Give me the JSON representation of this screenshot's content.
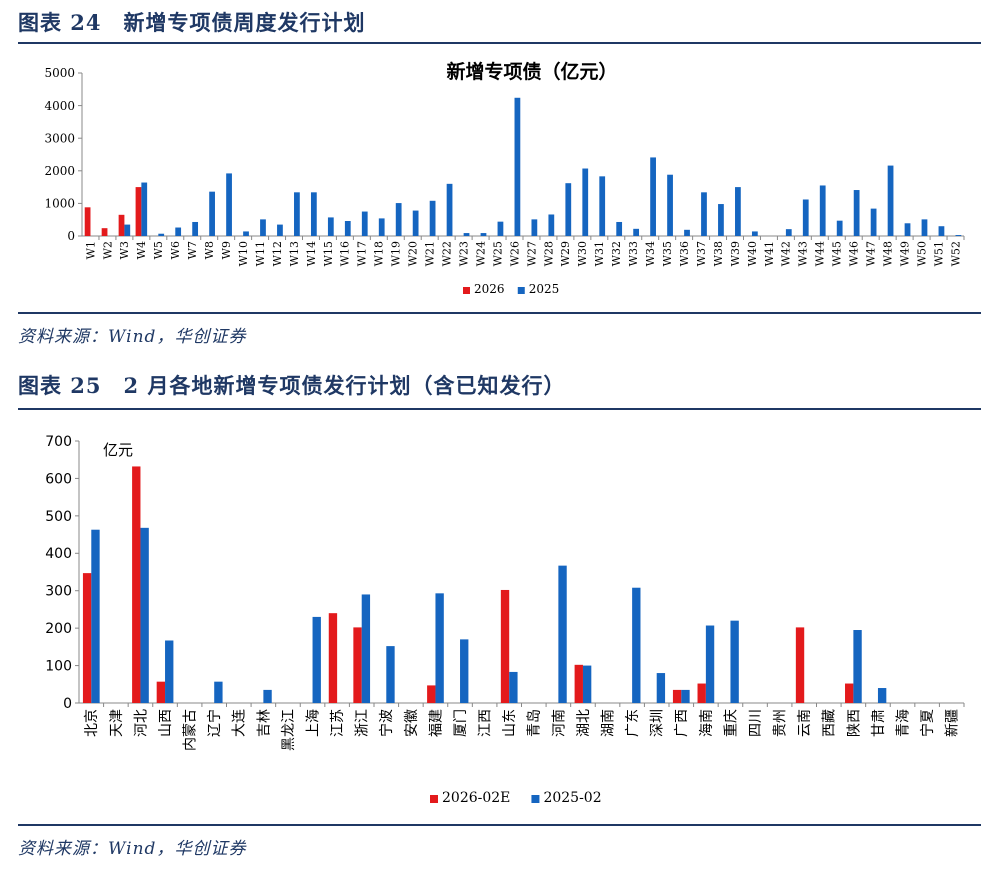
{
  "figure1": {
    "label": "图表 24　新增专项债周度发行计划",
    "source": "资料来源：Wind，华创证券"
  },
  "figure2": {
    "label": "图表 25　2 月各地新增专项债发行计划（含已知发行）",
    "source": "资料来源：Wind，华创证券"
  },
  "colors": {
    "red": "#e31a1c",
    "blue": "#1565c0",
    "navy": "#1f3864"
  },
  "chart_data": [
    {
      "type": "bar",
      "title": "新增专项债（亿元）",
      "xlabel": "",
      "ylabel": "",
      "ylim": [
        0,
        5000
      ],
      "yticks": [
        0,
        1000,
        2000,
        3000,
        4000,
        5000
      ],
      "grid": false,
      "legend_position": "bottom",
      "categories": [
        "W1",
        "W2",
        "W3",
        "W4",
        "W5",
        "W6",
        "W7",
        "W8",
        "W9",
        "W10",
        "W11",
        "W12",
        "W13",
        "W14",
        "W15",
        "W16",
        "W17",
        "W18",
        "W19",
        "W20",
        "W21",
        "W22",
        "W23",
        "W24",
        "W25",
        "W26",
        "W27",
        "W28",
        "W29",
        "W30",
        "W31",
        "W32",
        "W33",
        "W34",
        "W35",
        "W36",
        "W37",
        "W38",
        "W39",
        "W40",
        "W41",
        "W42",
        "W43",
        "W44",
        "W45",
        "W46",
        "W47",
        "W48",
        "W49",
        "W50",
        "W51",
        "W52"
      ],
      "series": [
        {
          "name": "2026",
          "color": "#e31a1c",
          "values": [
            880,
            240,
            650,
            1500,
            null,
            null,
            null,
            null,
            null,
            null,
            null,
            null,
            null,
            null,
            null,
            null,
            null,
            null,
            null,
            null,
            null,
            null,
            null,
            null,
            null,
            null,
            null,
            null,
            null,
            null,
            null,
            null,
            null,
            null,
            null,
            null,
            null,
            null,
            null,
            null,
            null,
            null,
            null,
            null,
            null,
            null,
            null,
            null,
            null,
            null,
            null,
            null
          ]
        },
        {
          "name": "2025",
          "color": "#1565c0",
          "values": [
            0,
            0,
            350,
            1640,
            70,
            260,
            430,
            1360,
            1920,
            140,
            510,
            350,
            1340,
            1340,
            570,
            460,
            750,
            540,
            1010,
            780,
            1080,
            1600,
            90,
            90,
            440,
            4240,
            510,
            660,
            1620,
            2070,
            1830,
            430,
            220,
            2410,
            1880,
            190,
            1340,
            980,
            1500,
            140,
            0,
            210,
            1120,
            1550,
            470,
            1410,
            840,
            2160,
            390,
            510,
            300,
            30
          ]
        }
      ]
    },
    {
      "type": "bar",
      "title": "",
      "unit_label": "亿元",
      "xlabel": "",
      "ylabel": "",
      "ylim": [
        0,
        700
      ],
      "yticks": [
        0,
        100,
        200,
        300,
        400,
        500,
        600,
        700
      ],
      "grid": false,
      "legend_position": "bottom",
      "categories": [
        "北京",
        "天津",
        "河北",
        "山西",
        "内蒙古",
        "辽宁",
        "大连",
        "吉林",
        "黑龙江",
        "上海",
        "江苏",
        "浙江",
        "宁波",
        "安徽",
        "福建",
        "厦门",
        "江西",
        "山东",
        "青岛",
        "河南",
        "湖北",
        "湖南",
        "广东",
        "深圳",
        "广西",
        "海南",
        "重庆",
        "四川",
        "贵州",
        "云南",
        "西藏",
        "陕西",
        "甘肃",
        "青海",
        "宁夏",
        "新疆"
      ],
      "series": [
        {
          "name": "2026-02E",
          "color": "#e31a1c",
          "values": [
            347,
            0,
            632,
            57,
            0,
            0,
            0,
            0,
            0,
            0,
            240,
            202,
            0,
            0,
            47,
            0,
            0,
            302,
            0,
            0,
            102,
            0,
            0,
            0,
            35,
            52,
            0,
            0,
            0,
            202,
            0,
            52,
            0,
            0,
            0,
            0
          ]
        },
        {
          "name": "2025-02",
          "color": "#1565c0",
          "values": [
            463,
            0,
            468,
            167,
            0,
            57,
            0,
            35,
            0,
            230,
            0,
            290,
            152,
            0,
            293,
            170,
            0,
            83,
            0,
            367,
            100,
            0,
            308,
            80,
            35,
            207,
            220,
            0,
            0,
            0,
            0,
            195,
            40,
            0,
            0,
            0
          ]
        }
      ]
    }
  ]
}
